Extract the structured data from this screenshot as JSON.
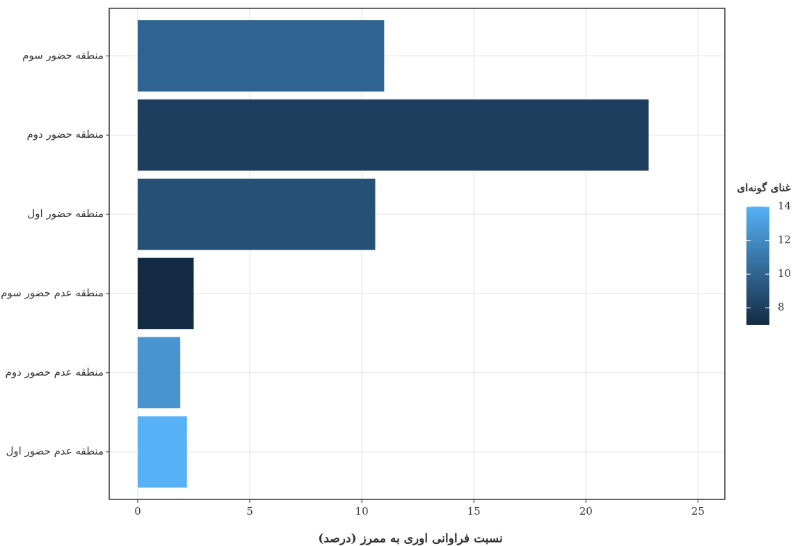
{
  "chart_data": {
    "type": "hbar",
    "categories": [
      "منطقه حضور سوم",
      "منطقه حضور دوم",
      "منطقه حضور اول",
      "منطقه عدم حضور سوم",
      "منطقه عدم حضور دوم",
      "منطقه عدم حضور اول"
    ],
    "values": [
      11.0,
      22.8,
      10.6,
      2.5,
      1.9,
      2.2
    ],
    "richness": [
      10,
      8,
      9,
      7,
      12.5,
      14
    ],
    "x_label": "نسبت فراوانی اوری به ممرز  (درصد)",
    "xlim": [
      -1.27,
      26.2
    ],
    "xticks": [
      0,
      5,
      10,
      15,
      20,
      25
    ],
    "grid": true,
    "legend": {
      "title": "غنای گونه‌ای",
      "lim": [
        7,
        14
      ],
      "ticks": [
        8,
        10,
        12,
        14
      ],
      "low_color": "#132b43",
      "high_color": "#56b1f7"
    }
  }
}
